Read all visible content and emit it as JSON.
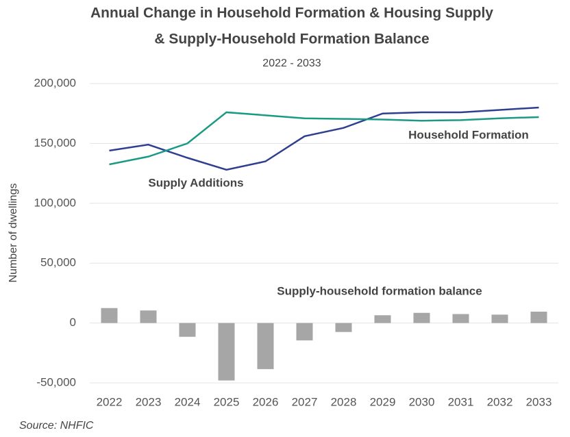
{
  "chart_data": {
    "type": "combo",
    "title": "Annual Change in Household Formation & Housing Supply",
    "title_line2": "& Supply-Household Formation Balance",
    "subtitle": "2022 - 2033",
    "y_label": "Number of dwellings",
    "source": "Source: NHFIC",
    "categories": [
      "2022",
      "2023",
      "2024",
      "2025",
      "2026",
      "2027",
      "2028",
      "2029",
      "2030",
      "2031",
      "2032",
      "2033"
    ],
    "series": [
      {
        "name": "Supply-household formation balance",
        "type": "bar",
        "color": "#a6a6a6",
        "values": [
          12500,
          10500,
          -11500,
          -48000,
          -38500,
          -14500,
          -7500,
          6500,
          8500,
          7500,
          7000,
          9500
        ]
      },
      {
        "name": "Supply Additions",
        "type": "line",
        "color": "#2e3f8f",
        "values": [
          144000,
          149000,
          138000,
          128000,
          135000,
          156000,
          163000,
          175000,
          176000,
          176000,
          178000,
          180000
        ]
      },
      {
        "name": "Household Formation",
        "type": "line",
        "color": "#1a9a85",
        "values": [
          132500,
          139000,
          150000,
          176000,
          173500,
          171000,
          170500,
          170000,
          169000,
          169500,
          171000,
          172000
        ]
      }
    ],
    "ylim": [
      -50000,
      200000
    ],
    "yticks": [
      {
        "value": -50000,
        "label": "-50,000"
      },
      0,
      {
        "value": 50000,
        "label": "50,000"
      },
      {
        "value": 100000,
        "label": "100,000"
      },
      {
        "value": 150000,
        "label": "150,000"
      },
      {
        "value": 200000,
        "label": "200,000"
      }
    ],
    "grid": true
  }
}
